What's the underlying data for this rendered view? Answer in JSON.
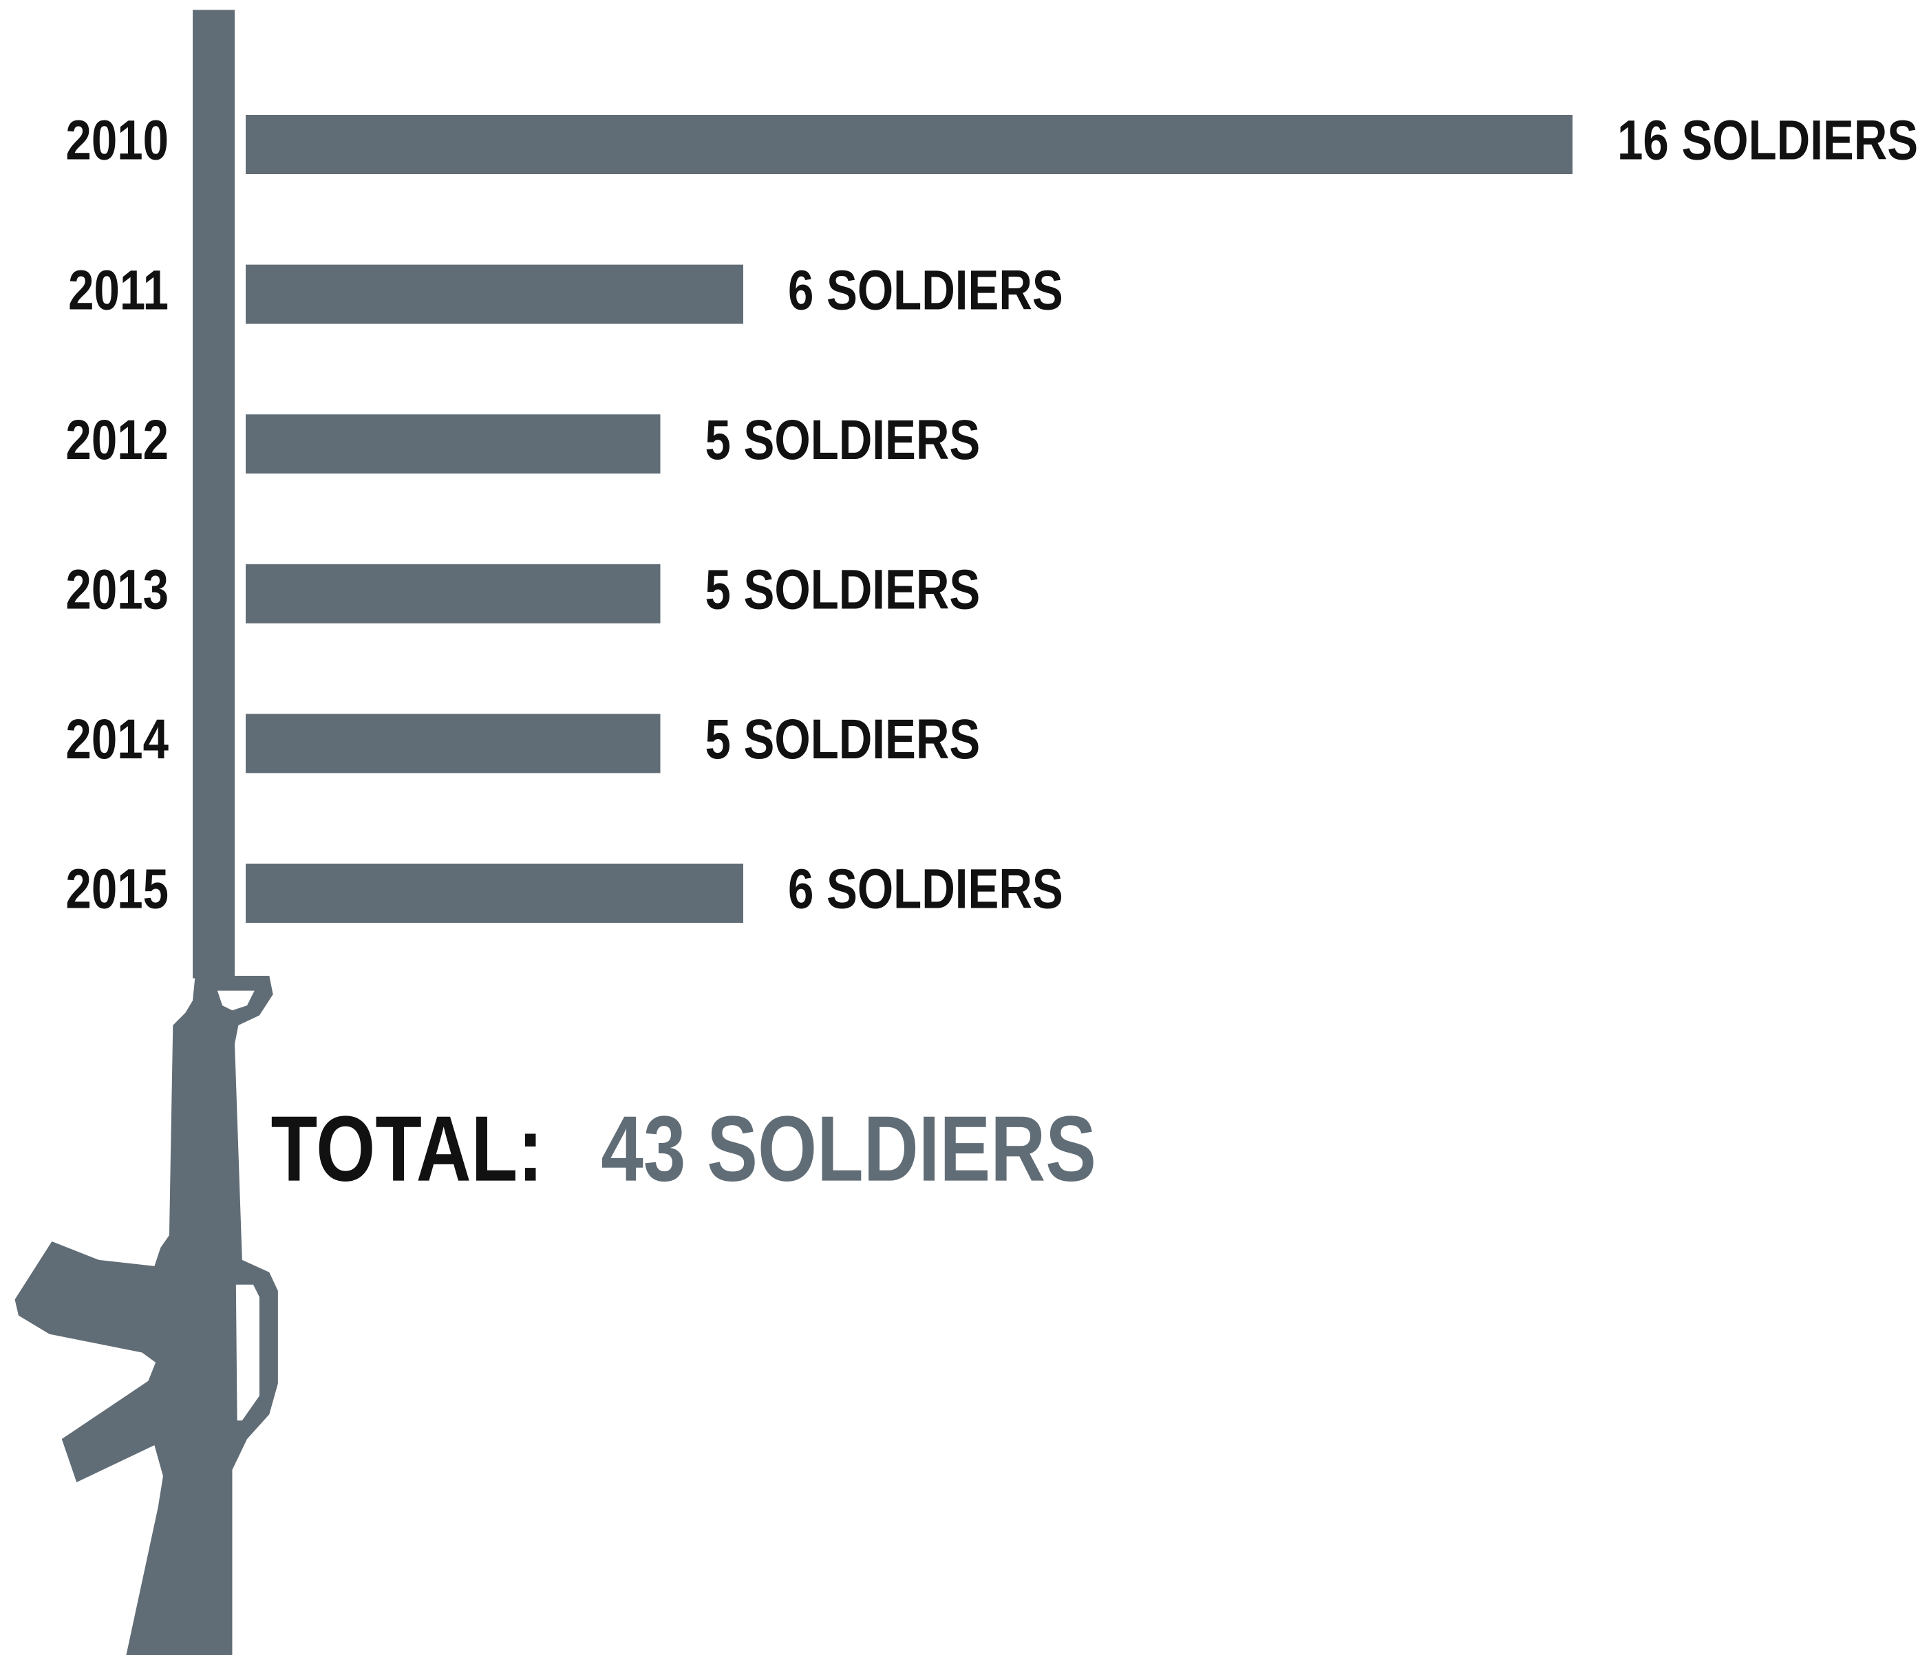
{
  "chart_data": {
    "type": "bar",
    "orientation": "horizontal",
    "categories": [
      "2010",
      "2011",
      "2012",
      "2013",
      "2014",
      "2015"
    ],
    "values": [
      16,
      6,
      5,
      5,
      5,
      6
    ],
    "value_labels": [
      "16 SOLDIERS",
      "6 SOLDIERS",
      "5 SOLDIERS",
      "5 SOLDIERS",
      "5 SOLDIERS",
      "6 SOLDIERS"
    ],
    "color": "#616d76",
    "total_label": "TOTAL:",
    "total_value": "43 SOLDIERS"
  }
}
